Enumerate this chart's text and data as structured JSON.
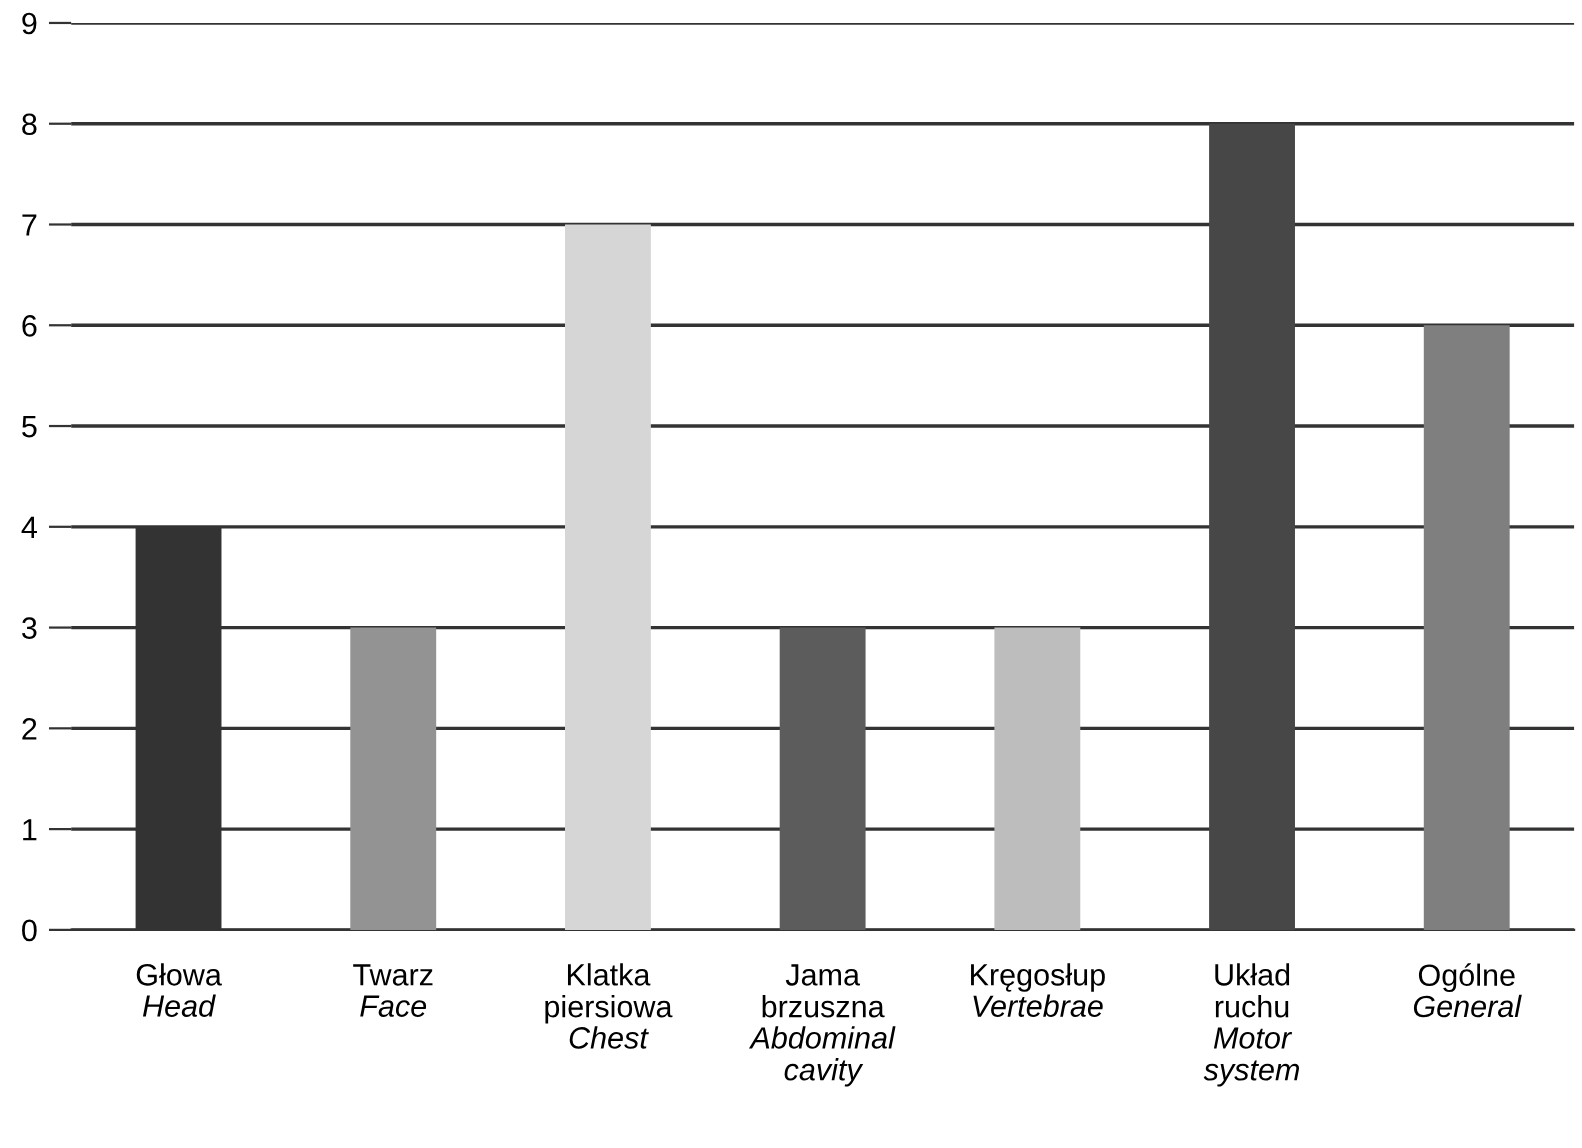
{
  "chart_data": {
    "type": "bar",
    "categories": [
      "Głowa\nHead",
      "Twarz\nFace",
      "Klatka piersiowa\nChest",
      "Jama brzuszna\nAbdominal cavity",
      "Kręgosłup\nVertebrae",
      "Układ ruchu\nMotor system",
      "Ogólne\nGeneral"
    ],
    "values": [
      4,
      3,
      7,
      3,
      3,
      8,
      6
    ],
    "colors": [
      "#333333",
      "#939393",
      "#d6d6d6",
      "#5c5c5c",
      "#bdbdbd",
      "#474747",
      "#7f7f7f"
    ],
    "ylim": [
      0,
      9
    ],
    "yticks": [
      0,
      1,
      2,
      3,
      4,
      5,
      6,
      7,
      8,
      9
    ],
    "grid": "y"
  }
}
